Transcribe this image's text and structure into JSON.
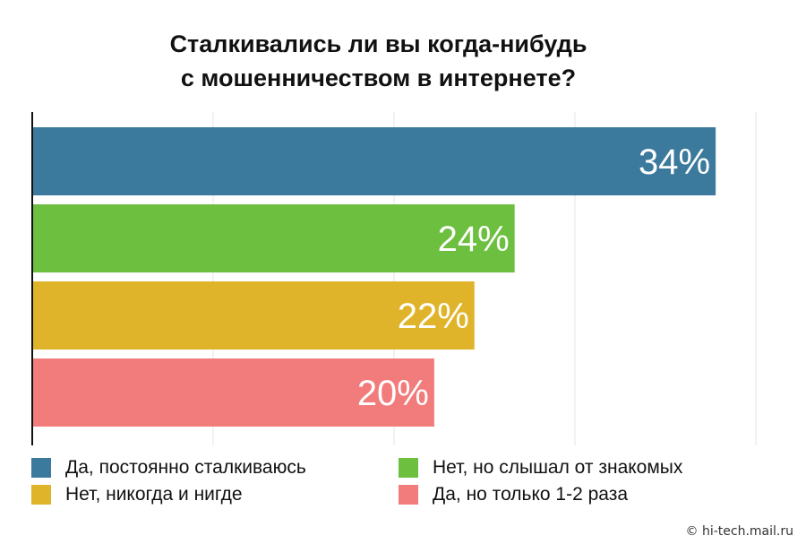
{
  "chart_data": {
    "type": "bar",
    "orientation": "horizontal",
    "title_lines": [
      "Сталкивались ли вы когда-нибудь",
      "с мошенничеством в интернете?"
    ],
    "categories": [
      "Да, постоянно сталкиваюсь",
      "Нет, но слышал от знакомых",
      "Нет, никогда и нигде",
      "Да, но только 1-2 раза"
    ],
    "values": [
      34,
      24,
      22,
      20
    ],
    "data_labels": [
      "34%",
      "24%",
      "22%",
      "20%"
    ],
    "colors": [
      "#3b7a9c",
      "#6cbf3f",
      "#e0b42a",
      "#f27c7c"
    ],
    "xlim": [
      0,
      36
    ],
    "grid": true,
    "legend": {
      "position": "bottom",
      "items": [
        {
          "label": "Да, постоянно сталкиваюсь",
          "color": "#3b7a9c"
        },
        {
          "label": "Нет, но слышал от знакомых",
          "color": "#6cbf3f"
        },
        {
          "label": "Нет, никогда и нигде",
          "color": "#e0b42a"
        },
        {
          "label": "Да, но только 1-2 раза",
          "color": "#f27c7c"
        }
      ]
    }
  },
  "watermark": "© hi-tech.mail.ru"
}
